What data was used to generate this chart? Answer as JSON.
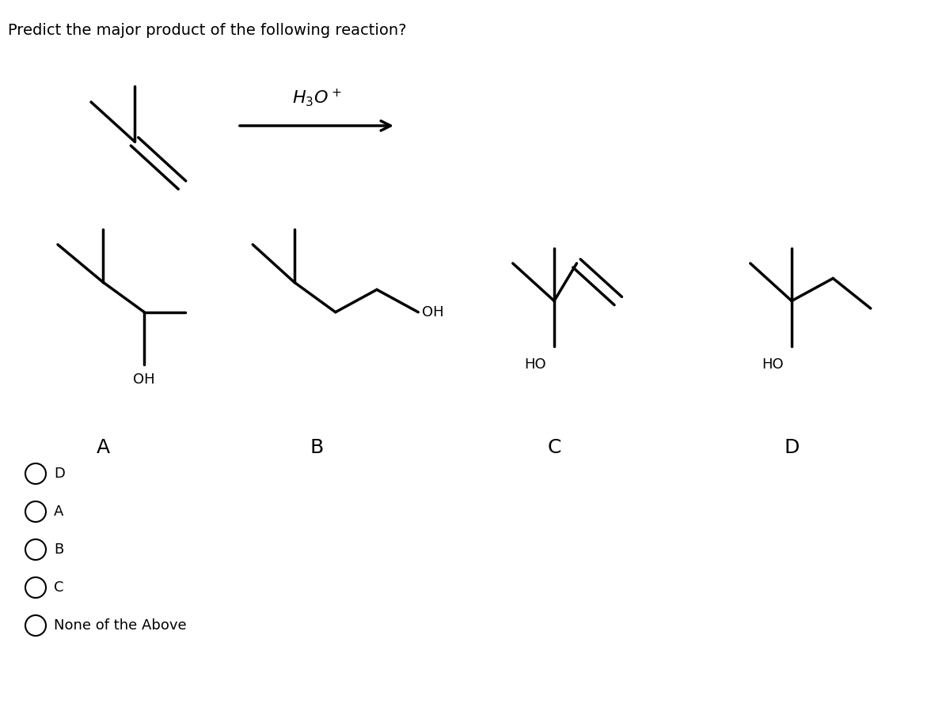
{
  "title": "Predict the major product of the following reaction?",
  "reagent": "H₃O⁺",
  "bg_color": "#ffffff",
  "text_color": "#000000",
  "line_width": 2.5,
  "choices": [
    "D",
    "A",
    "B",
    "C",
    "None of the Above"
  ],
  "choice_labels": [
    "A",
    "B",
    "C",
    "D"
  ]
}
